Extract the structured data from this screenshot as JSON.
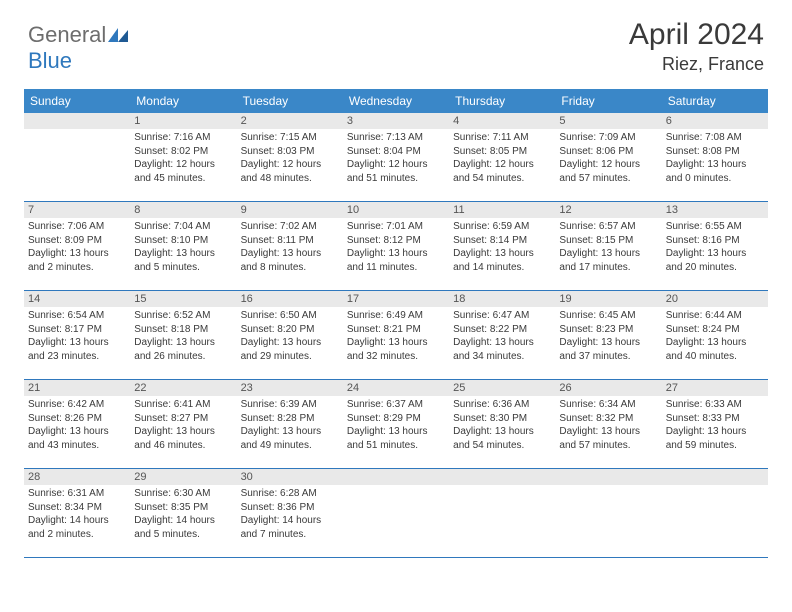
{
  "brand": {
    "part1": "General",
    "part2": "Blue"
  },
  "title": "April 2024",
  "location": "Riez, France",
  "colors": {
    "header_bg": "#3a87c8",
    "border": "#2f78bd",
    "daynum_bg": "#e9e9e9",
    "text": "#3a3a3a",
    "logo_gray": "#6d6d6d",
    "logo_blue": "#2f78bd",
    "page_bg": "#ffffff"
  },
  "weekdays": [
    "Sunday",
    "Monday",
    "Tuesday",
    "Wednesday",
    "Thursday",
    "Friday",
    "Saturday"
  ],
  "weeks": [
    [
      {
        "n": "",
        "sr": "",
        "ss": "",
        "dl": ""
      },
      {
        "n": "1",
        "sr": "7:16 AM",
        "ss": "8:02 PM",
        "dl": "12 hours and 45 minutes."
      },
      {
        "n": "2",
        "sr": "7:15 AM",
        "ss": "8:03 PM",
        "dl": "12 hours and 48 minutes."
      },
      {
        "n": "3",
        "sr": "7:13 AM",
        "ss": "8:04 PM",
        "dl": "12 hours and 51 minutes."
      },
      {
        "n": "4",
        "sr": "7:11 AM",
        "ss": "8:05 PM",
        "dl": "12 hours and 54 minutes."
      },
      {
        "n": "5",
        "sr": "7:09 AM",
        "ss": "8:06 PM",
        "dl": "12 hours and 57 minutes."
      },
      {
        "n": "6",
        "sr": "7:08 AM",
        "ss": "8:08 PM",
        "dl": "13 hours and 0 minutes."
      }
    ],
    [
      {
        "n": "7",
        "sr": "7:06 AM",
        "ss": "8:09 PM",
        "dl": "13 hours and 2 minutes."
      },
      {
        "n": "8",
        "sr": "7:04 AM",
        "ss": "8:10 PM",
        "dl": "13 hours and 5 minutes."
      },
      {
        "n": "9",
        "sr": "7:02 AM",
        "ss": "8:11 PM",
        "dl": "13 hours and 8 minutes."
      },
      {
        "n": "10",
        "sr": "7:01 AM",
        "ss": "8:12 PM",
        "dl": "13 hours and 11 minutes."
      },
      {
        "n": "11",
        "sr": "6:59 AM",
        "ss": "8:14 PM",
        "dl": "13 hours and 14 minutes."
      },
      {
        "n": "12",
        "sr": "6:57 AM",
        "ss": "8:15 PM",
        "dl": "13 hours and 17 minutes."
      },
      {
        "n": "13",
        "sr": "6:55 AM",
        "ss": "8:16 PM",
        "dl": "13 hours and 20 minutes."
      }
    ],
    [
      {
        "n": "14",
        "sr": "6:54 AM",
        "ss": "8:17 PM",
        "dl": "13 hours and 23 minutes."
      },
      {
        "n": "15",
        "sr": "6:52 AM",
        "ss": "8:18 PM",
        "dl": "13 hours and 26 minutes."
      },
      {
        "n": "16",
        "sr": "6:50 AM",
        "ss": "8:20 PM",
        "dl": "13 hours and 29 minutes."
      },
      {
        "n": "17",
        "sr": "6:49 AM",
        "ss": "8:21 PM",
        "dl": "13 hours and 32 minutes."
      },
      {
        "n": "18",
        "sr": "6:47 AM",
        "ss": "8:22 PM",
        "dl": "13 hours and 34 minutes."
      },
      {
        "n": "19",
        "sr": "6:45 AM",
        "ss": "8:23 PM",
        "dl": "13 hours and 37 minutes."
      },
      {
        "n": "20",
        "sr": "6:44 AM",
        "ss": "8:24 PM",
        "dl": "13 hours and 40 minutes."
      }
    ],
    [
      {
        "n": "21",
        "sr": "6:42 AM",
        "ss": "8:26 PM",
        "dl": "13 hours and 43 minutes."
      },
      {
        "n": "22",
        "sr": "6:41 AM",
        "ss": "8:27 PM",
        "dl": "13 hours and 46 minutes."
      },
      {
        "n": "23",
        "sr": "6:39 AM",
        "ss": "8:28 PM",
        "dl": "13 hours and 49 minutes."
      },
      {
        "n": "24",
        "sr": "6:37 AM",
        "ss": "8:29 PM",
        "dl": "13 hours and 51 minutes."
      },
      {
        "n": "25",
        "sr": "6:36 AM",
        "ss": "8:30 PM",
        "dl": "13 hours and 54 minutes."
      },
      {
        "n": "26",
        "sr": "6:34 AM",
        "ss": "8:32 PM",
        "dl": "13 hours and 57 minutes."
      },
      {
        "n": "27",
        "sr": "6:33 AM",
        "ss": "8:33 PM",
        "dl": "13 hours and 59 minutes."
      }
    ],
    [
      {
        "n": "28",
        "sr": "6:31 AM",
        "ss": "8:34 PM",
        "dl": "14 hours and 2 minutes."
      },
      {
        "n": "29",
        "sr": "6:30 AM",
        "ss": "8:35 PM",
        "dl": "14 hours and 5 minutes."
      },
      {
        "n": "30",
        "sr": "6:28 AM",
        "ss": "8:36 PM",
        "dl": "14 hours and 7 minutes."
      },
      {
        "n": "",
        "sr": "",
        "ss": "",
        "dl": ""
      },
      {
        "n": "",
        "sr": "",
        "ss": "",
        "dl": ""
      },
      {
        "n": "",
        "sr": "",
        "ss": "",
        "dl": ""
      },
      {
        "n": "",
        "sr": "",
        "ss": "",
        "dl": ""
      }
    ]
  ],
  "labels": {
    "sunrise": "Sunrise:",
    "sunset": "Sunset:",
    "daylight": "Daylight:"
  }
}
